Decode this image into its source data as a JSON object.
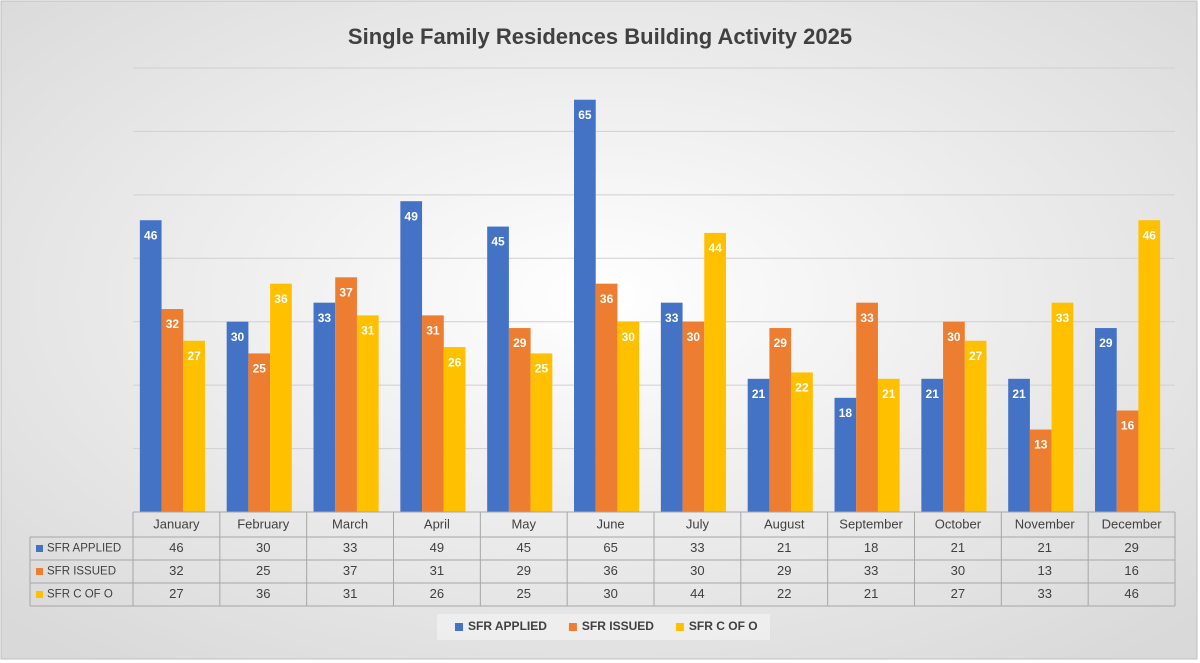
{
  "chart_data": {
    "type": "bar",
    "title": "Single Family Residences Building Activity 2025",
    "categories": [
      "January",
      "February",
      "March",
      "April",
      "May",
      "June",
      "July",
      "August",
      "September",
      "October",
      "November",
      "December"
    ],
    "series": [
      {
        "name": "SFR APPLIED",
        "color": "#4472c4",
        "values": [
          46,
          30,
          33,
          49,
          45,
          65,
          33,
          21,
          18,
          21,
          21,
          29
        ]
      },
      {
        "name": "SFR ISSUED",
        "color": "#ed7d31",
        "values": [
          32,
          25,
          37,
          31,
          29,
          36,
          30,
          29,
          33,
          30,
          13,
          16
        ]
      },
      {
        "name": "SFR C OF O",
        "color": "#ffc000",
        "values": [
          27,
          36,
          31,
          26,
          25,
          30,
          44,
          22,
          21,
          27,
          33,
          46
        ]
      }
    ],
    "ylim": [
      0,
      70
    ],
    "yticks": [
      0,
      10,
      20,
      30,
      40,
      50,
      60,
      70
    ],
    "grid": true,
    "data_table": true,
    "legend": "bottom"
  }
}
